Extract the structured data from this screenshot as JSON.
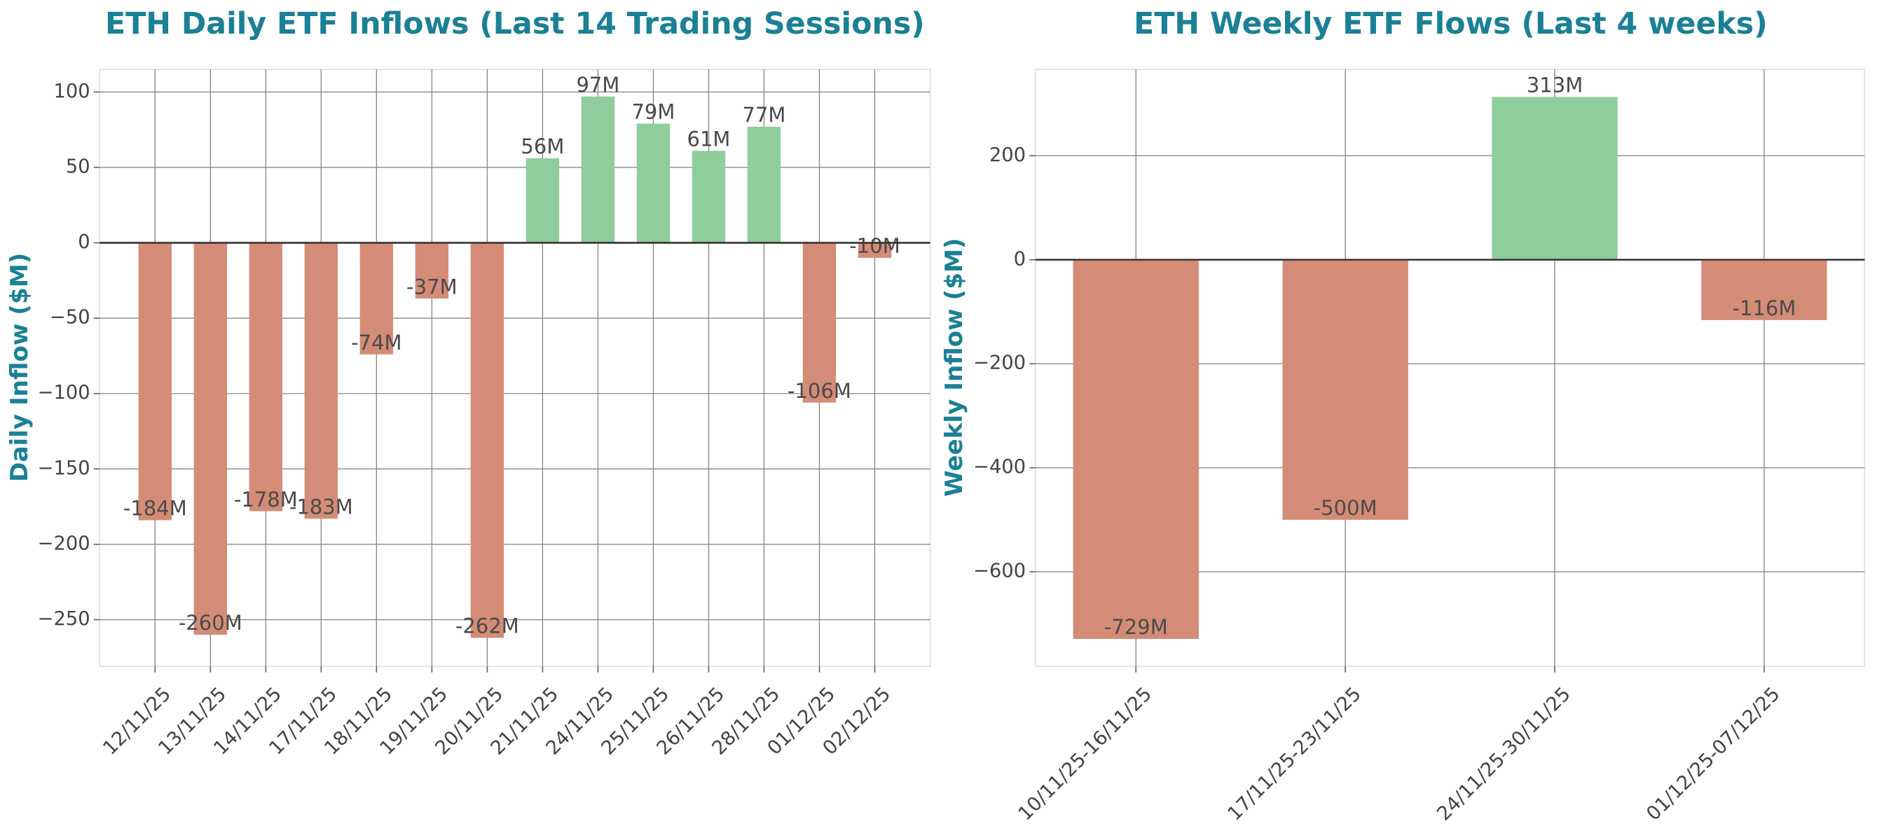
{
  "chart_data": [
    {
      "type": "bar",
      "title": "ETH Daily ETF Inflows (Last 14 Trading Sessions)",
      "y_label": "Daily Inflow ($M)",
      "categories": [
        "12/11/25",
        "13/11/25",
        "14/11/25",
        "17/11/25",
        "18/11/25",
        "19/11/25",
        "20/11/25",
        "21/11/25",
        "24/11/25",
        "25/11/25",
        "26/11/25",
        "28/11/25",
        "01/12/25",
        "02/12/25"
      ],
      "values": [
        -184,
        -260,
        -178,
        -183,
        -74,
        -37,
        -262,
        56,
        97,
        79,
        61,
        77,
        -106,
        -10
      ],
      "value_labels": [
        "-184M",
        "-260M",
        "-178M",
        "-183M",
        "-74M",
        "-37M",
        "-262M",
        "56M",
        "97M",
        "79M",
        "61M",
        "77M",
        "-106M",
        "-10M"
      ],
      "positive_color": "#8fcd9c",
      "negative_color": "#d48c76",
      "ylim": [
        -281,
        115
      ],
      "yticks": [
        {
          "value": -250,
          "label": "−250"
        },
        {
          "value": -200,
          "label": "−200"
        },
        {
          "value": -150,
          "label": "−150"
        },
        {
          "value": -100,
          "label": "−100"
        },
        {
          "value": -50,
          "label": "−50"
        },
        0,
        50,
        100
      ],
      "grid": true
    },
    {
      "type": "bar",
      "title": "ETH Weekly ETF Flows (Last 4 weeks)",
      "y_label": "Weekly Inflow ($M)",
      "categories": [
        "10/11/25-16/11/25",
        "17/11/25-23/11/25",
        "24/11/25-30/11/25",
        "01/12/25-07/12/25"
      ],
      "values": [
        -729,
        -500,
        313,
        -116
      ],
      "value_labels": [
        "-729M",
        "-500M",
        "313M",
        "-116M"
      ],
      "positive_color": "#8fcd9c",
      "negative_color": "#d48c76",
      "ylim": [
        -782,
        366
      ],
      "yticks": [
        {
          "value": -600,
          "label": "−600"
        },
        {
          "value": -400,
          "label": "−400"
        },
        {
          "value": -200,
          "label": "−200"
        },
        0,
        200
      ],
      "grid": true
    }
  ]
}
